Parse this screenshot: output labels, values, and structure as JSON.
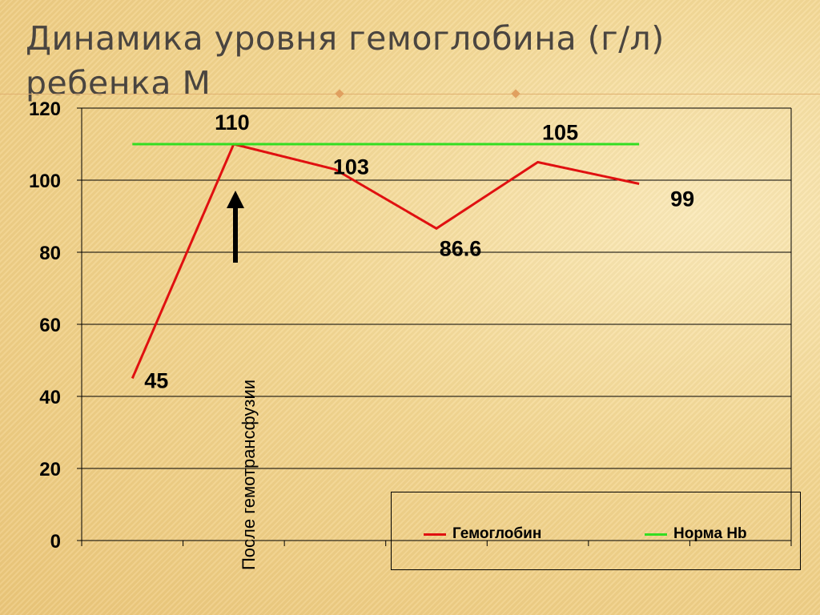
{
  "slide": {
    "title_line1": "Динамика уровня гемоглобина (г/л)",
    "title_line2": "ребенка М"
  },
  "annotation": {
    "text": "После гемотрансфузии",
    "arrow": "up-arrow"
  },
  "colors": {
    "hemoglobin": "#e01010",
    "norm": "#33dd22"
  },
  "chart_data": {
    "type": "line",
    "categories": [
      "",
      "",
      "",
      "",
      "",
      ""
    ],
    "series": [
      {
        "name": "Гемоглобин",
        "values": [
          45,
          110,
          103,
          86.6,
          105,
          99
        ],
        "labels": [
          "45",
          "110",
          "103",
          "86.6",
          "105",
          "99"
        ]
      },
      {
        "name": "Норма Hb",
        "values": [
          110,
          110,
          110,
          110,
          110,
          110
        ]
      }
    ],
    "title": "",
    "xlabel": "",
    "ylabel": "",
    "ylim": [
      0,
      120
    ],
    "yticks": [
      "0",
      "20",
      "40",
      "60",
      "80",
      "100",
      "120"
    ],
    "grid": true,
    "legend": "bottom-right"
  }
}
